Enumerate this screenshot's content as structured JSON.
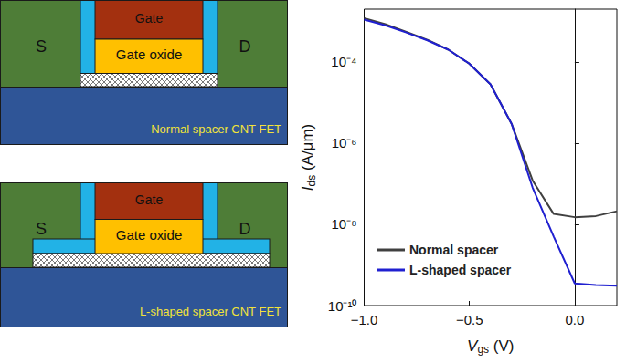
{
  "chart_data": {
    "type": "line",
    "xlabel": "Vgs (V)",
    "ylabel": "Ids (A/μm)",
    "x": [
      -1.0,
      -0.9,
      -0.8,
      -0.7,
      -0.6,
      -0.5,
      -0.4,
      -0.3,
      -0.2,
      -0.1,
      0.0,
      0.1,
      0.2
    ],
    "series": [
      {
        "name": "Normal spacer",
        "color": "#404040",
        "values": [
          0.0012,
          0.00085,
          0.00055,
          0.00035,
          0.0002,
          9e-05,
          2.8e-05,
          3e-06,
          1.2e-07,
          1.8e-08,
          1.5e-08,
          1.6e-08,
          2.1e-08
        ]
      },
      {
        "name": "L-shaped spacer",
        "color": "#2020d0",
        "values": [
          0.0011,
          0.0008,
          0.00053,
          0.00034,
          0.0002,
          9e-05,
          2.8e-05,
          3e-06,
          8e-08,
          5e-09,
          3.5e-10,
          3.2e-10,
          3.1e-10
        ]
      }
    ],
    "xlim": [
      -1.0,
      0.2
    ],
    "xticks": [
      {
        "value": -1.0,
        "label": "−1.0"
      },
      {
        "value": -0.5,
        "label": "−0.5"
      },
      {
        "value": 0.0,
        "label": "0.0"
      }
    ],
    "ylim": [
      1e-10,
      0.002
    ],
    "yticks": [
      {
        "value": 1e-10,
        "label": "10⁻¹⁰"
      },
      {
        "value": 1e-08,
        "label": "10⁻⁸"
      },
      {
        "value": 1e-06,
        "label": "10⁻⁶"
      },
      {
        "value": 0.0001,
        "label": "10⁻⁴"
      }
    ],
    "log": "y",
    "grid": false,
    "legend": "lower left"
  },
  "diagrams": [
    {
      "caption": "Normal spacer CNT FET",
      "spacer": "normal",
      "labels": {
        "source": "S",
        "drain": "D",
        "gate": "Gate",
        "oxide": "Gate oxide"
      }
    },
    {
      "caption": "L-shaped spacer CNT FET",
      "spacer": "L-shaped",
      "labels": {
        "source": "S",
        "drain": "D",
        "gate": "Gate",
        "oxide": "Gate oxide"
      }
    }
  ]
}
